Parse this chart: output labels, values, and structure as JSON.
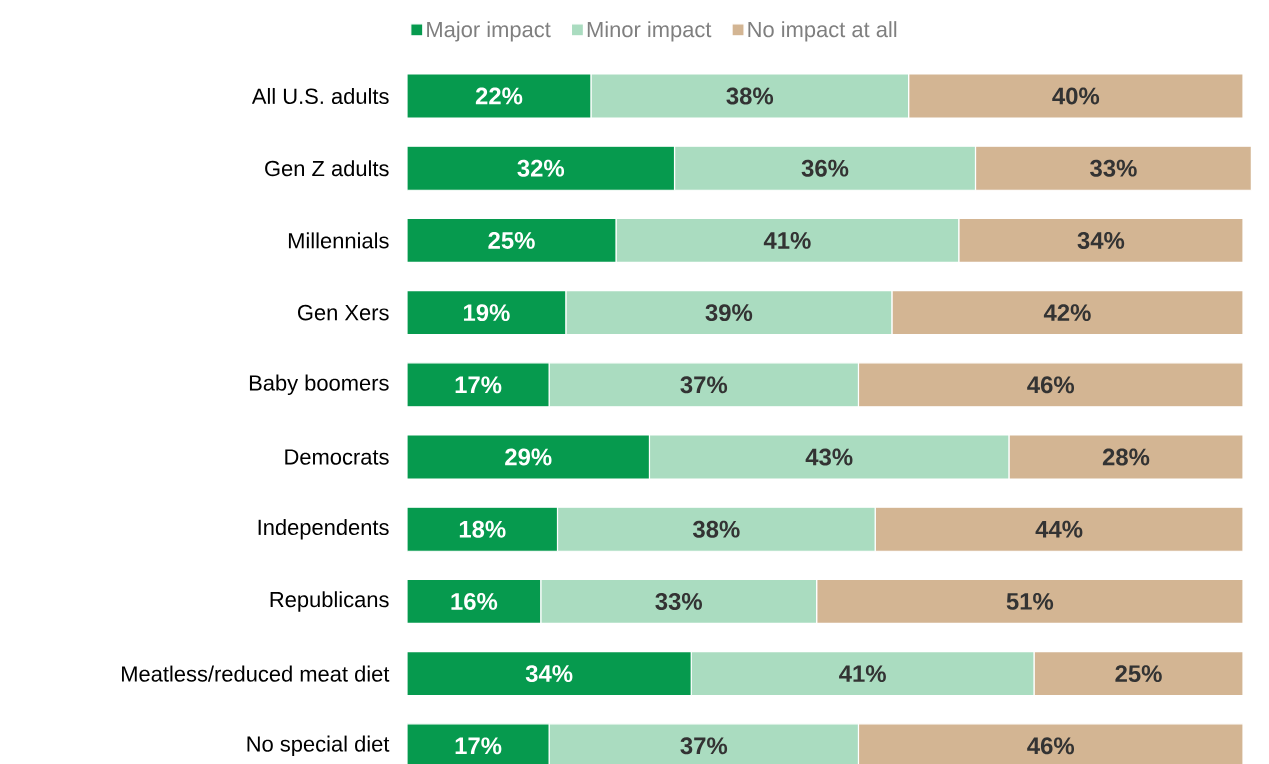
{
  "chart_data": {
    "type": "bar",
    "orientation": "horizontal",
    "stacked": true,
    "legend": "top",
    "tick_labels": "y",
    "categories": [
      "All U.S. adults",
      "Gen Z adults",
      "Millennials",
      "Gen Xers",
      "Baby boomers",
      "Democrats",
      "Independents",
      "Republicans",
      "Meatless/reduced meat diet",
      "No special diet"
    ],
    "series": [
      {
        "name": "Major impact",
        "color": "#069a4e",
        "values": [
          22,
          32,
          25,
          19,
          17,
          29,
          18,
          16,
          34,
          17
        ],
        "value_labels": [
          "22%",
          "32%",
          "25%",
          "19%",
          "17%",
          "29%",
          "18%",
          "16%",
          "34%",
          "17%"
        ]
      },
      {
        "name": "Minor impact",
        "color": "#aadcc0",
        "values": [
          38,
          36,
          41,
          39,
          37,
          43,
          38,
          33,
          41,
          37
        ],
        "value_labels": [
          "38%",
          "36%",
          "41%",
          "39%",
          "37%",
          "43%",
          "38%",
          "33%",
          "41%",
          "37%"
        ]
      },
      {
        "name": "No impact at all",
        "color": "#d3b593",
        "values": [
          40,
          33,
          34,
          42,
          46,
          28,
          44,
          51,
          25,
          46
        ],
        "value_labels": [
          "40%",
          "33%",
          "34%",
          "42%",
          "46%",
          "28%",
          "44%",
          "51%",
          "25%",
          "46%"
        ]
      }
    ]
  }
}
